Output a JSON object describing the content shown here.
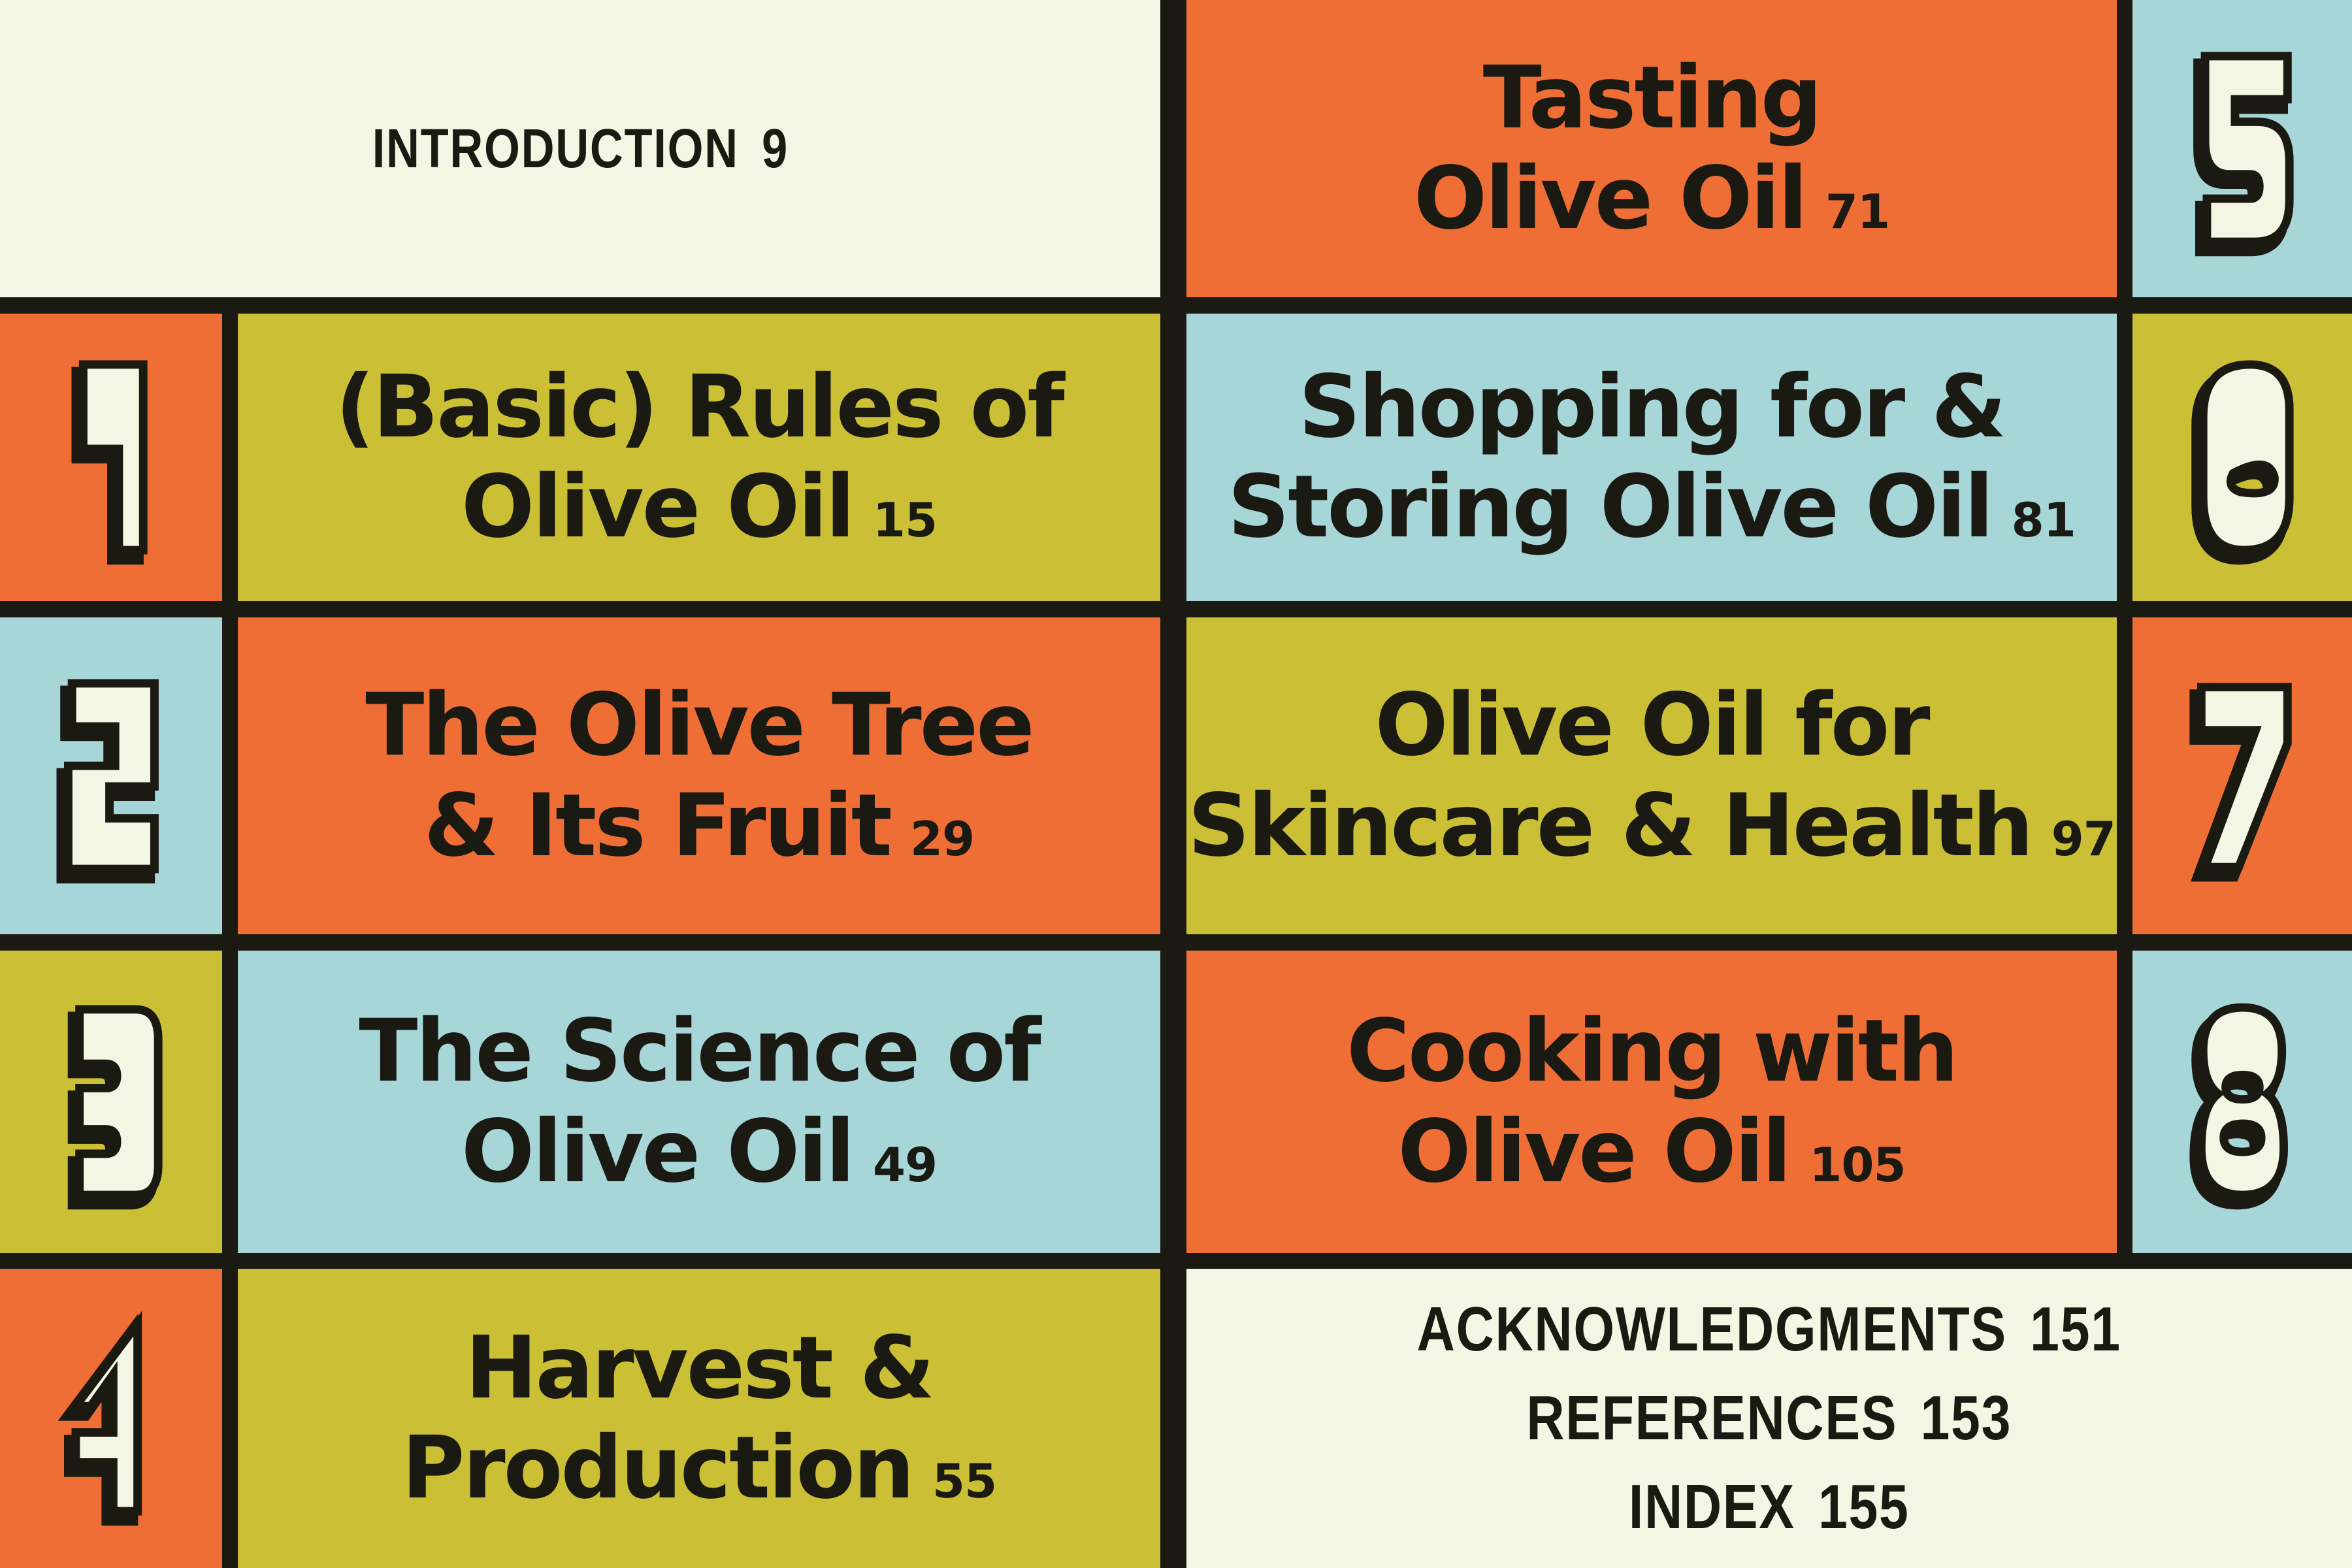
{
  "colors": {
    "orange": "#ef6e36",
    "olive": "#cabf35",
    "blue": "#a7d6d9",
    "cream": "#f3f6e2",
    "ink": "#1a1a13"
  },
  "intro": {
    "label": "INTRODUCTION",
    "page": "9"
  },
  "chapters": [
    {
      "num": "1",
      "title_lines": [
        "(Basic) Rules of",
        "Olive Oil"
      ],
      "page": "15"
    },
    {
      "num": "2",
      "title_lines": [
        "The Olive Tree",
        "& Its Fruit"
      ],
      "page": "29"
    },
    {
      "num": "3",
      "title_lines": [
        "The Science of",
        "Olive Oil"
      ],
      "page": "49"
    },
    {
      "num": "4",
      "title_lines": [
        "Harvest &",
        "Production"
      ],
      "page": "55"
    },
    {
      "num": "5",
      "title_lines": [
        "Tasting",
        "Olive Oil"
      ],
      "page": "71"
    },
    {
      "num": "6",
      "title_lines": [
        "Shopping for &",
        "Storing Olive Oil"
      ],
      "page": "81"
    },
    {
      "num": "7",
      "title_lines": [
        "Olive Oil for",
        "Skincare & Health"
      ],
      "page": "97"
    },
    {
      "num": "8",
      "title_lines": [
        "Cooking with",
        "Olive Oil"
      ],
      "page": "105"
    }
  ],
  "back_matter": [
    {
      "label": "ACKNOWLEDGMENTS",
      "page": "151"
    },
    {
      "label": "REFERENCES",
      "page": "153"
    },
    {
      "label": "INDEX",
      "page": "155"
    }
  ]
}
